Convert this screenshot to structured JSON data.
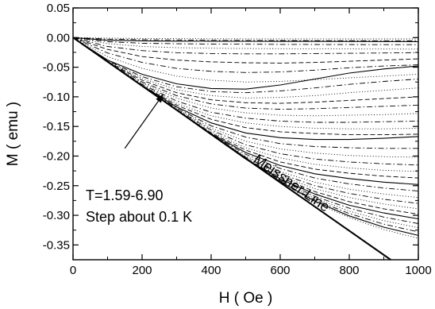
{
  "chart_data": {
    "type": "line",
    "title": "",
    "xlabel": "H ( Oe )",
    "ylabel": "M ( emu )",
    "xlim": [
      0,
      1000
    ],
    "ylim": [
      -0.375,
      0.05
    ],
    "xticks": [
      0,
      200,
      400,
      600,
      800,
      1000
    ],
    "xtick_labels": [
      "0",
      "200",
      "400",
      "600",
      "800",
      "1000"
    ],
    "yticks": [
      0.05,
      0.0,
      -0.05,
      -0.1,
      -0.15,
      -0.2,
      -0.25,
      -0.3,
      -0.35
    ],
    "ytick_labels": [
      "0.05",
      "0.00",
      "-0.05",
      "-0.10",
      "-0.15",
      "-0.20",
      "-0.25",
      "-0.30",
      "-0.35"
    ],
    "grid": false,
    "legend": "none",
    "meissner_line": {
      "label": "Meissner Line",
      "x": [
        0,
        920
      ],
      "y": [
        0.0,
        -0.375
      ]
    },
    "annotation": {
      "line1": "T=1.59-6.90",
      "line2": "Step about 0.1 K",
      "arrow_from": [
        150,
        -0.187
      ],
      "arrow_to": [
        262,
        -0.095
      ]
    },
    "series": [
      {
        "style": "dot",
        "x": [
          0,
          100,
          200,
          300,
          400,
          500,
          600,
          700,
          800,
          900,
          1000
        ],
        "y": [
          0,
          -0.001,
          -0.0015,
          -0.0018,
          -0.002,
          -0.0021,
          -0.0022,
          -0.0022,
          -0.0023,
          -0.0023,
          -0.0023
        ]
      },
      {
        "style": "dashdot",
        "x": [
          0,
          100,
          200,
          300,
          400,
          500,
          600,
          700,
          800,
          900,
          1000
        ],
        "y": [
          0,
          -0.0025,
          -0.0035,
          -0.004,
          -0.0045,
          -0.0048,
          -0.005,
          -0.0052,
          -0.0053,
          -0.0054,
          -0.0055
        ]
      },
      {
        "style": "solid",
        "x": [
          0,
          100,
          200,
          300,
          400,
          500,
          600,
          700,
          800,
          900,
          1000
        ],
        "y": [
          0,
          -0.0045,
          -0.0055,
          -0.006,
          -0.0062,
          -0.0063,
          -0.0064,
          -0.0065,
          -0.0066,
          -0.0067,
          -0.0068
        ]
      },
      {
        "style": "dashdot",
        "x": [
          0,
          100,
          200,
          300,
          400,
          500,
          600,
          700,
          800,
          900,
          1000
        ],
        "y": [
          0,
          -0.007,
          -0.0095,
          -0.0105,
          -0.011,
          -0.0112,
          -0.0115,
          -0.0117,
          -0.0118,
          -0.0119,
          -0.012
        ]
      },
      {
        "style": "dot",
        "x": [
          0,
          100,
          200,
          300,
          400,
          500,
          600,
          700,
          800,
          900,
          1000
        ],
        "y": [
          0,
          -0.01,
          -0.015,
          -0.017,
          -0.018,
          -0.0185,
          -0.0188,
          -0.019,
          -0.0192,
          -0.0193,
          -0.0195
        ]
      },
      {
        "style": "dashdot",
        "x": [
          0,
          100,
          200,
          300,
          400,
          500,
          600,
          700,
          800,
          900,
          1000
        ],
        "y": [
          0,
          -0.015,
          -0.022,
          -0.0255,
          -0.027,
          -0.0275,
          -0.0275,
          -0.027,
          -0.0265,
          -0.026,
          -0.0255
        ]
      },
      {
        "style": "dash",
        "x": [
          0,
          100,
          200,
          300,
          400,
          500,
          600,
          700,
          800,
          900,
          1000
        ],
        "y": [
          0,
          -0.02,
          -0.032,
          -0.038,
          -0.041,
          -0.0425,
          -0.043,
          -0.042,
          -0.04,
          -0.038,
          -0.036
        ]
      },
      {
        "style": "dashdot",
        "x": [
          0,
          100,
          200,
          300,
          400,
          500,
          600,
          700,
          800,
          900,
          1000
        ],
        "y": [
          0,
          -0.026,
          -0.042,
          -0.052,
          -0.057,
          -0.059,
          -0.058,
          -0.055,
          -0.051,
          -0.048,
          -0.046
        ]
      },
      {
        "style": "dot",
        "x": [
          0,
          100,
          200,
          300,
          400,
          500,
          600,
          700,
          800,
          900,
          1000
        ],
        "y": [
          0,
          -0.032,
          -0.052,
          -0.065,
          -0.072,
          -0.075,
          -0.074,
          -0.071,
          -0.068,
          -0.065,
          -0.062
        ]
      },
      {
        "style": "solid",
        "x": [
          0,
          100,
          200,
          300,
          400,
          500,
          600,
          700,
          800,
          900,
          1000
        ],
        "y": [
          0,
          -0.038,
          -0.062,
          -0.078,
          -0.086,
          -0.087,
          -0.08,
          -0.07,
          -0.06,
          -0.053,
          -0.048
        ]
      },
      {
        "style": "dashdot",
        "x": [
          0,
          100,
          200,
          300,
          400,
          500,
          600,
          700,
          800,
          900,
          1000
        ],
        "y": [
          0,
          -0.039,
          -0.066,
          -0.083,
          -0.091,
          -0.093,
          -0.09,
          -0.085,
          -0.079,
          -0.074,
          -0.07
        ]
      },
      {
        "style": "dot",
        "x": [
          0,
          100,
          200,
          300,
          400,
          500,
          600,
          700,
          800,
          900,
          1000
        ],
        "y": [
          0,
          -0.04,
          -0.069,
          -0.088,
          -0.098,
          -0.102,
          -0.101,
          -0.098,
          -0.093,
          -0.089,
          -0.085
        ]
      },
      {
        "style": "dash",
        "x": [
          0,
          100,
          200,
          300,
          400,
          500,
          600,
          700,
          800,
          900,
          1000
        ],
        "y": [
          0,
          -0.0405,
          -0.072,
          -0.093,
          -0.105,
          -0.11,
          -0.111,
          -0.109,
          -0.106,
          -0.103,
          -0.1
        ]
      },
      {
        "style": "dashdot",
        "x": [
          0,
          100,
          200,
          300,
          400,
          500,
          600,
          700,
          800,
          900,
          1000
        ],
        "y": [
          0,
          -0.041,
          -0.075,
          -0.098,
          -0.112,
          -0.119,
          -0.121,
          -0.12,
          -0.118,
          -0.116,
          -0.114
        ]
      },
      {
        "style": "dot",
        "x": [
          0,
          100,
          200,
          300,
          400,
          500,
          600,
          700,
          800,
          900,
          1000
        ],
        "y": [
          0,
          -0.041,
          -0.077,
          -0.102,
          -0.119,
          -0.127,
          -0.131,
          -0.132,
          -0.131,
          -0.13,
          -0.128
        ]
      },
      {
        "style": "dashdot",
        "x": [
          0,
          100,
          200,
          300,
          400,
          500,
          600,
          700,
          800,
          900,
          1000
        ],
        "y": [
          0,
          -0.041,
          -0.079,
          -0.107,
          -0.126,
          -0.136,
          -0.141,
          -0.143,
          -0.143,
          -0.142,
          -0.141
        ]
      },
      {
        "style": "dot",
        "x": [
          0,
          100,
          200,
          300,
          400,
          500,
          600,
          700,
          800,
          900,
          1000
        ],
        "y": [
          0,
          -0.041,
          -0.08,
          -0.111,
          -0.132,
          -0.144,
          -0.15,
          -0.153,
          -0.154,
          -0.154,
          -0.153
        ]
      },
      {
        "style": "dash",
        "x": [
          0,
          100,
          200,
          300,
          400,
          500,
          600,
          700,
          800,
          900,
          1000
        ],
        "y": [
          0,
          -0.041,
          -0.081,
          -0.114,
          -0.138,
          -0.152,
          -0.159,
          -0.162,
          -0.164,
          -0.164,
          -0.163
        ]
      },
      {
        "style": "solid",
        "x": [
          0,
          100,
          200,
          300,
          400,
          500,
          600,
          700,
          800,
          900,
          1000
        ],
        "y": [
          0,
          -0.041,
          -0.081,
          -0.117,
          -0.144,
          -0.161,
          -0.169,
          -0.172,
          -0.172,
          -0.17,
          -0.167
        ]
      },
      {
        "style": "dashdot",
        "x": [
          0,
          100,
          200,
          300,
          400,
          500,
          600,
          700,
          800,
          900,
          1000
        ],
        "y": [
          0,
          -0.041,
          -0.0815,
          -0.119,
          -0.149,
          -0.168,
          -0.179,
          -0.184,
          -0.186,
          -0.187,
          -0.187
        ]
      },
      {
        "style": "dot",
        "x": [
          0,
          100,
          200,
          300,
          400,
          500,
          600,
          700,
          800,
          900,
          1000
        ],
        "y": [
          0,
          -0.041,
          -0.0815,
          -0.1205,
          -0.153,
          -0.175,
          -0.188,
          -0.195,
          -0.199,
          -0.201,
          -0.202
        ]
      },
      {
        "style": "dashdot",
        "x": [
          0,
          100,
          200,
          300,
          400,
          500,
          600,
          700,
          800,
          900,
          1000
        ],
        "y": [
          0,
          -0.041,
          -0.0815,
          -0.1215,
          -0.156,
          -0.181,
          -0.196,
          -0.205,
          -0.21,
          -0.213,
          -0.215
        ]
      },
      {
        "style": "dot",
        "x": [
          0,
          100,
          200,
          300,
          400,
          500,
          600,
          700,
          800,
          900,
          1000
        ],
        "y": [
          0,
          -0.041,
          -0.0815,
          -0.122,
          -0.159,
          -0.186,
          -0.203,
          -0.214,
          -0.22,
          -0.224,
          -0.226
        ]
      },
      {
        "style": "dash",
        "x": [
          0,
          100,
          200,
          300,
          400,
          500,
          600,
          700,
          800,
          900,
          1000
        ],
        "y": [
          0,
          -0.041,
          -0.0815,
          -0.1225,
          -0.161,
          -0.19,
          -0.21,
          -0.222,
          -0.229,
          -0.234,
          -0.237
        ]
      },
      {
        "style": "solid",
        "x": [
          0,
          100,
          200,
          300,
          400,
          500,
          600,
          700,
          800,
          900,
          1000
        ],
        "y": [
          0,
          -0.041,
          -0.0815,
          -0.1225,
          -0.1625,
          -0.194,
          -0.216,
          -0.23,
          -0.238,
          -0.244,
          -0.248
        ]
      },
      {
        "style": "dashdot",
        "x": [
          0,
          100,
          200,
          300,
          400,
          500,
          600,
          700,
          800,
          900,
          1000
        ],
        "y": [
          0,
          -0.041,
          -0.0815,
          -0.1225,
          -0.1635,
          -0.197,
          -0.221,
          -0.237,
          -0.247,
          -0.254,
          -0.259
        ]
      },
      {
        "style": "dot",
        "x": [
          0,
          100,
          200,
          300,
          400,
          500,
          600,
          700,
          800,
          900,
          1000
        ],
        "y": [
          0,
          -0.041,
          -0.0815,
          -0.1225,
          -0.164,
          -0.2,
          -0.226,
          -0.244,
          -0.256,
          -0.264,
          -0.27
        ]
      },
      {
        "style": "dashdot",
        "x": [
          0,
          100,
          200,
          300,
          400,
          500,
          600,
          700,
          800,
          900,
          1000
        ],
        "y": [
          0,
          -0.041,
          -0.0815,
          -0.1225,
          -0.164,
          -0.202,
          -0.23,
          -0.25,
          -0.263,
          -0.273,
          -0.28
        ]
      },
      {
        "style": "dot",
        "x": [
          0,
          100,
          200,
          300,
          400,
          500,
          600,
          700,
          800,
          900,
          1000
        ],
        "y": [
          0,
          -0.041,
          -0.0815,
          -0.1225,
          -0.164,
          -0.2035,
          -0.233,
          -0.255,
          -0.27,
          -0.281,
          -0.289
        ]
      },
      {
        "style": "dash",
        "x": [
          0,
          100,
          200,
          300,
          400,
          500,
          600,
          700,
          800,
          900,
          1000
        ],
        "y": [
          0,
          -0.041,
          -0.0815,
          -0.1225,
          -0.164,
          -0.2045,
          -0.236,
          -0.26,
          -0.277,
          -0.289,
          -0.298
        ]
      },
      {
        "style": "solid",
        "x": [
          0,
          100,
          200,
          300,
          400,
          500,
          600,
          700,
          800,
          900,
          1000
        ],
        "y": [
          0,
          -0.041,
          -0.0815,
          -0.1225,
          -0.164,
          -0.205,
          -0.2385,
          -0.264,
          -0.283,
          -0.296,
          -0.306
        ]
      },
      {
        "style": "dashdot",
        "x": [
          0,
          100,
          200,
          300,
          400,
          500,
          600,
          700,
          800,
          900,
          1000
        ],
        "y": [
          0,
          -0.041,
          -0.0815,
          -0.1225,
          -0.164,
          -0.205,
          -0.24,
          -0.268,
          -0.288,
          -0.303,
          -0.314
        ]
      },
      {
        "style": "dot",
        "x": [
          0,
          100,
          200,
          300,
          400,
          500,
          600,
          700,
          800,
          900,
          1000
        ],
        "y": [
          0,
          -0.041,
          -0.0815,
          -0.1225,
          -0.164,
          -0.205,
          -0.2415,
          -0.271,
          -0.293,
          -0.309,
          -0.321
        ]
      },
      {
        "style": "dashdot",
        "x": [
          0,
          100,
          200,
          300,
          400,
          500,
          600,
          700,
          800,
          900,
          1000
        ],
        "y": [
          0,
          -0.041,
          -0.0815,
          -0.1225,
          -0.164,
          -0.205,
          -0.2425,
          -0.274,
          -0.297,
          -0.315,
          -0.328
        ]
      },
      {
        "style": "solid",
        "x": [
          0,
          100,
          200,
          300,
          400,
          500,
          600,
          700,
          800,
          900,
          1000
        ],
        "y": [
          0,
          -0.041,
          -0.0815,
          -0.1225,
          -0.164,
          -0.205,
          -0.243,
          -0.276,
          -0.301,
          -0.32,
          -0.334
        ]
      },
      {
        "style": "dot",
        "x": [
          0,
          100,
          200,
          300,
          400,
          500,
          600,
          700,
          800,
          900,
          1000
        ],
        "y": [
          0,
          -0.041,
          -0.0815,
          -0.1225,
          -0.164,
          -0.205,
          -0.2435,
          -0.278,
          -0.304,
          -0.324,
          -0.339
        ]
      }
    ]
  }
}
